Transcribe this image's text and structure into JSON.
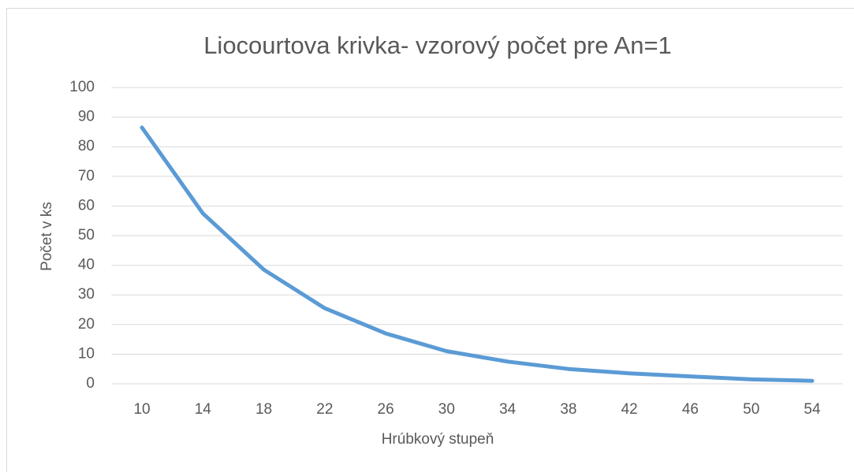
{
  "chart_data": {
    "type": "line",
    "title": "Liocourtova krivka- vzorový počet pre An=1",
    "x_label": "Hrúbkový stupeň",
    "y_label": "Počet v ks",
    "categories": [
      10,
      14,
      18,
      22,
      26,
      30,
      34,
      38,
      42,
      46,
      50,
      54
    ],
    "series": [
      {
        "name": "Počet",
        "color": "#5b9bd5",
        "values": [
          86.5,
          57.5,
          38.5,
          25.5,
          17,
          11,
          7.5,
          5,
          3.5,
          2.5,
          1.5,
          1
        ]
      }
    ],
    "ylim": [
      0,
      100
    ],
    "yticks": [
      0,
      10,
      20,
      30,
      40,
      50,
      60,
      70,
      80,
      90,
      100
    ],
    "grid": true,
    "legend": false
  }
}
